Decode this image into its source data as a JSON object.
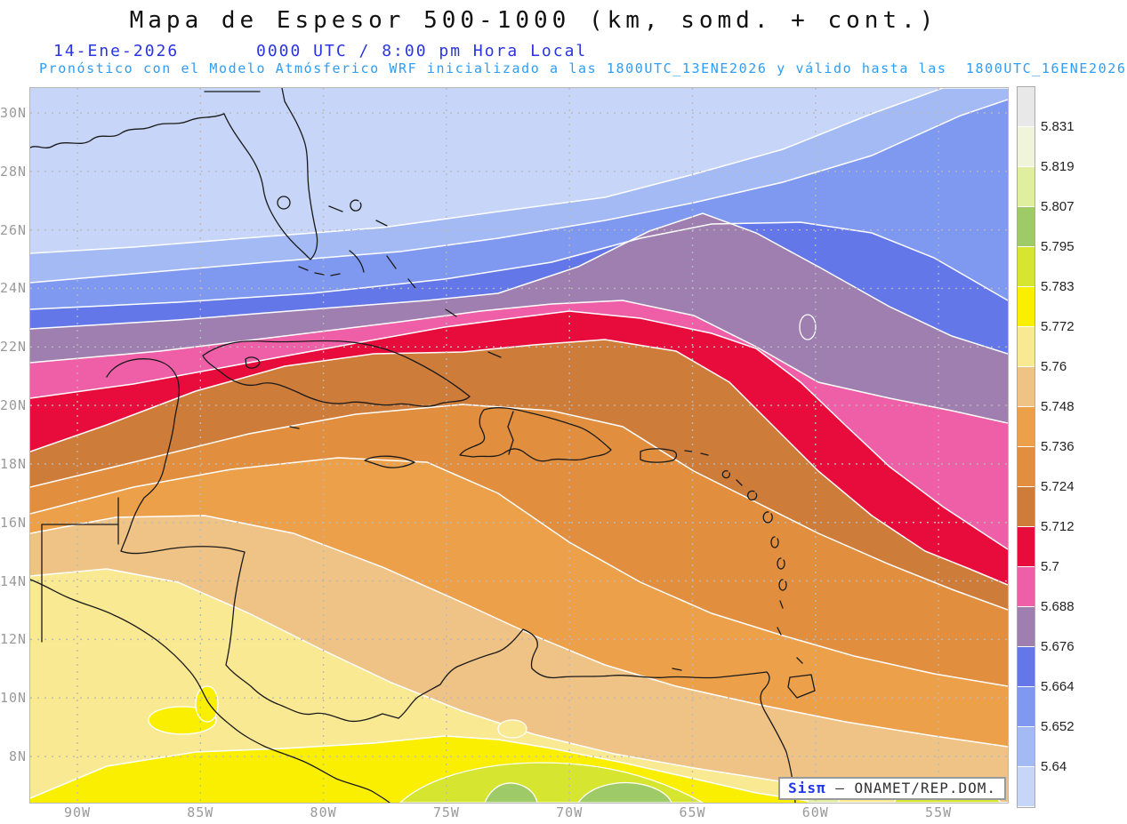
{
  "header": {
    "title": "Mapa de Espesor 500-1000 (km, somd. + cont.)",
    "date": "14-Ene-2026",
    "time_line": "0000 UTC / 8:00 pm Hora Local",
    "forecast_line": "Pronóstico con el Modelo Atmósferico WRF inicializado a las 1800UTC_13ENE2026 y válido hasta las  1800UTC_16ENE2026",
    "title_color": "#111111",
    "date_color": "#2a35e0",
    "forecast_color": "#2f9df5"
  },
  "attribution": {
    "brand": "Sisπ",
    "text": " – ONAMET/REP.DOM."
  },
  "axes": {
    "lat_labels": [
      "30N",
      "28N",
      "26N",
      "24N",
      "22N",
      "20N",
      "18N",
      "16N",
      "14N",
      "12N",
      "10N",
      "8N"
    ],
    "lon_labels": [
      "90W",
      "85W",
      "80W",
      "75W",
      "70W",
      "65W",
      "60W",
      "55W"
    ]
  },
  "colorbar": {
    "labels_top_to_bottom": [
      "5.831",
      "5.819",
      "5.807",
      "5.795",
      "5.783",
      "5.772",
      "5.76",
      "5.748",
      "5.736",
      "5.724",
      "5.712",
      "5.7",
      "5.688",
      "5.676",
      "5.664",
      "5.652",
      "5.64"
    ],
    "colors_top_to_bottom": [
      "#E8E8E8",
      "#EFF4DA",
      "#DFEE9F",
      "#9ECB67",
      "#D6E530",
      "#FAEF00",
      "#F9E992",
      "#EFC285",
      "#ECA04A",
      "#E18F3E",
      "#CE7C3A",
      "#E80C3C",
      "#EE5FA7",
      "#9E7FAF",
      "#6377E8",
      "#8099F0",
      "#A3BAF5",
      "#C6D5F8"
    ]
  },
  "chart_data": {
    "type": "filled-contour-map",
    "variable": "Espesor 500-1000 (km)",
    "region": "Caribbean / Gulf of Mexico / Northern South America",
    "lat_range": [
      7,
      31
    ],
    "lon_range": [
      -92,
      -53
    ],
    "levels": [
      5.64,
      5.652,
      5.664,
      5.676,
      5.688,
      5.7,
      5.712,
      5.724,
      5.736,
      5.748,
      5.76,
      5.772,
      5.783,
      5.795,
      5.807,
      5.819,
      5.831
    ],
    "band_colors_north_to_south": [
      "#C6D5F8",
      "#A3BAF5",
      "#8099F0",
      "#6377E8",
      "#9E7FAF",
      "#EE5FA7",
      "#E80C3C",
      "#CE7C3A",
      "#E18F3E",
      "#ECA04A",
      "#EFC285",
      "#F9E992",
      "#FAEF00"
    ],
    "contours": [
      {
        "level": "5.64",
        "points": [
          [
            34,
            285
          ],
          [
            150,
            278
          ],
          [
            300,
            266
          ],
          [
            430,
            256
          ],
          [
            560,
            238
          ],
          [
            680,
            222
          ],
          [
            780,
            196
          ],
          [
            880,
            168
          ],
          [
            980,
            128
          ],
          [
            1060,
            99
          ],
          [
            1133,
            99
          ]
        ]
      },
      {
        "level": "5.652",
        "points": [
          [
            34,
            318
          ],
          [
            150,
            308
          ],
          [
            300,
            295
          ],
          [
            450,
            283
          ],
          [
            560,
            268
          ],
          [
            680,
            248
          ],
          [
            780,
            228
          ],
          [
            880,
            205
          ],
          [
            980,
            175
          ],
          [
            1080,
            130
          ],
          [
            1133,
            112
          ]
        ]
      },
      {
        "level": "5.664",
        "points": [
          [
            34,
            348
          ],
          [
            200,
            340
          ],
          [
            350,
            330
          ],
          [
            500,
            314
          ],
          [
            620,
            295
          ],
          [
            720,
            268
          ],
          [
            800,
            252
          ],
          [
            900,
            250
          ],
          [
            980,
            262
          ],
          [
            1050,
            290
          ],
          [
            1133,
            338
          ]
        ]
      },
      {
        "level": "5.676",
        "points": [
          [
            34,
            370
          ],
          [
            200,
            360
          ],
          [
            350,
            348
          ],
          [
            480,
            338
          ],
          [
            560,
            330
          ],
          [
            650,
            300
          ],
          [
            730,
            260
          ],
          [
            790,
            240
          ],
          [
            850,
            262
          ],
          [
            920,
            300
          ],
          [
            1000,
            345
          ],
          [
            1070,
            378
          ],
          [
            1133,
            398
          ]
        ]
      },
      {
        "level": "5.688",
        "points": [
          [
            34,
            408
          ],
          [
            180,
            395
          ],
          [
            320,
            378
          ],
          [
            450,
            362
          ],
          [
            540,
            350
          ],
          [
            620,
            342
          ],
          [
            700,
            338
          ],
          [
            780,
            355
          ],
          [
            850,
            390
          ],
          [
            920,
            430
          ],
          [
            1000,
            448
          ],
          [
            1070,
            462
          ],
          [
            1133,
            476
          ]
        ]
      },
      {
        "level": "5.7",
        "points": [
          [
            34,
            448
          ],
          [
            150,
            432
          ],
          [
            280,
            408
          ],
          [
            400,
            386
          ],
          [
            500,
            368
          ],
          [
            560,
            360
          ],
          [
            640,
            350
          ],
          [
            720,
            358
          ],
          [
            800,
            375
          ],
          [
            850,
            392
          ],
          [
            900,
            430
          ],
          [
            950,
            478
          ],
          [
            1000,
            525
          ],
          [
            1060,
            570
          ],
          [
            1133,
            618
          ]
        ]
      },
      {
        "level": "5.712",
        "points": [
          [
            34,
            508
          ],
          [
            120,
            478
          ],
          [
            220,
            440
          ],
          [
            320,
            412
          ],
          [
            420,
            398
          ],
          [
            520,
            396
          ],
          [
            600,
            388
          ],
          [
            680,
            382
          ],
          [
            760,
            395
          ],
          [
            820,
            430
          ],
          [
            870,
            480
          ],
          [
            920,
            530
          ],
          [
            980,
            580
          ],
          [
            1040,
            620
          ],
          [
            1090,
            640
          ],
          [
            1133,
            658
          ]
        ]
      },
      {
        "level": "5.724",
        "points": [
          [
            34,
            548
          ],
          [
            150,
            520
          ],
          [
            280,
            488
          ],
          [
            400,
            466
          ],
          [
            520,
            455
          ],
          [
            620,
            462
          ],
          [
            700,
            480
          ],
          [
            780,
            530
          ],
          [
            850,
            565
          ],
          [
            920,
            600
          ],
          [
            1000,
            635
          ],
          [
            1070,
            663
          ],
          [
            1133,
            686
          ]
        ]
      },
      {
        "level": "5.736",
        "points": [
          [
            34,
            578
          ],
          [
            150,
            548
          ],
          [
            260,
            528
          ],
          [
            380,
            515
          ],
          [
            480,
            520
          ],
          [
            560,
            555
          ],
          [
            640,
            610
          ],
          [
            720,
            655
          ],
          [
            800,
            690
          ],
          [
            880,
            715
          ],
          [
            960,
            738
          ],
          [
            1050,
            758
          ],
          [
            1133,
            772
          ]
        ]
      },
      {
        "level": "5.748",
        "points": [
          [
            34,
            600
          ],
          [
            130,
            582
          ],
          [
            230,
            580
          ],
          [
            330,
            600
          ],
          [
            430,
            638
          ],
          [
            520,
            678
          ],
          [
            600,
            715
          ],
          [
            680,
            748
          ],
          [
            760,
            772
          ],
          [
            850,
            792
          ],
          [
            950,
            812
          ],
          [
            1050,
            828
          ],
          [
            1133,
            840
          ]
        ]
      },
      {
        "level": "5.76",
        "points": [
          [
            34,
            648
          ],
          [
            120,
            640
          ],
          [
            200,
            655
          ],
          [
            280,
            690
          ],
          [
            360,
            730
          ],
          [
            440,
            768
          ],
          [
            520,
            800
          ],
          [
            600,
            826
          ],
          [
            690,
            848
          ],
          [
            780,
            864
          ],
          [
            870,
            878
          ],
          [
            960,
            890
          ],
          [
            1050,
            898
          ],
          [
            1133,
            903
          ]
        ]
      },
      {
        "level": "5.772",
        "points": [
          [
            34,
            898
          ],
          [
            120,
            862
          ],
          [
            220,
            846
          ],
          [
            320,
            842
          ],
          [
            420,
            836
          ],
          [
            500,
            828
          ],
          [
            560,
            832
          ],
          [
            620,
            842
          ],
          [
            700,
            858
          ],
          [
            780,
            876
          ],
          [
            850,
            892
          ],
          [
            920,
            903
          ],
          [
            1133,
            903
          ]
        ]
      }
    ]
  }
}
